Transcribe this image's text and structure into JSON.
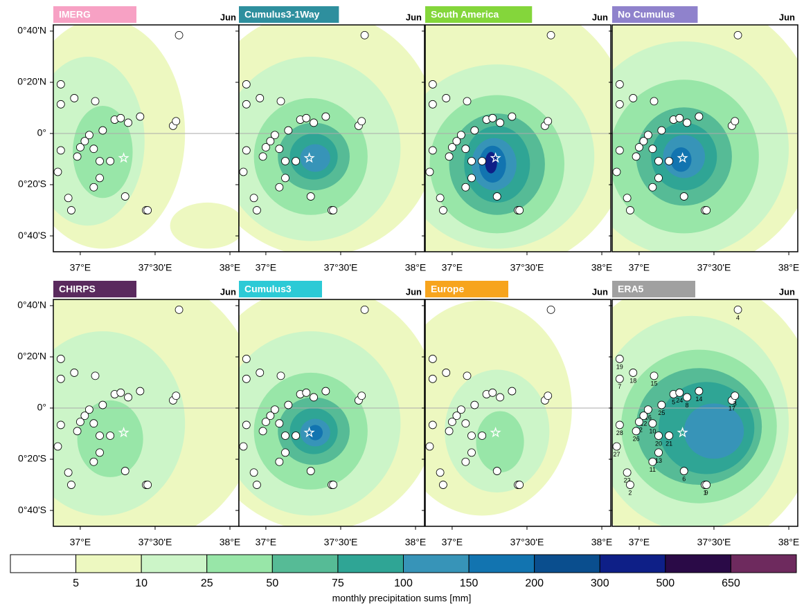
{
  "panels": [
    {
      "title": "IMERG",
      "color": "#f7a1c4",
      "month": "Jun"
    },
    {
      "title": "Cumulus3-1Way",
      "color": "#2e8f9e",
      "month": "Jun"
    },
    {
      "title": "South America",
      "color": "#84d63b",
      "month": "Jun"
    },
    {
      "title": "No Cumulus",
      "color": "#8f82cc",
      "month": "Jun"
    },
    {
      "title": "CHIRPS",
      "color": "#5a2a5e",
      "month": "Jun"
    },
    {
      "title": "Cumulus3",
      "color": "#2ccad6",
      "month": "Jun"
    },
    {
      "title": "Europe",
      "color": "#f7a41d",
      "month": "Jun"
    },
    {
      "title": "ERA5",
      "color": "#a0a0a0",
      "month": "Jun"
    }
  ],
  "xlim": [
    36.82,
    38.06
  ],
  "ylim": [
    -0.77,
    0.707
  ],
  "xticks": [
    {
      "value": 37,
      "label": "37°E"
    },
    {
      "value": 37.5,
      "label": "37°30'E"
    },
    {
      "value": 38,
      "label": "38°E"
    }
  ],
  "yticks": [
    {
      "value": 0.6667,
      "label": "0°40'N"
    },
    {
      "value": 0.3333,
      "label": "0°20'N"
    },
    {
      "value": 0,
      "label": "0°"
    },
    {
      "value": -0.3333,
      "label": "0°20'S"
    },
    {
      "value": -0.6667,
      "label": "0°40'S"
    }
  ],
  "star": {
    "lon": 37.29,
    "lat": -0.16
  },
  "stations": [
    {
      "id": "4",
      "lon": 37.66,
      "lat": 0.64
    },
    {
      "id": "19",
      "lon": 36.87,
      "lat": 0.32
    },
    {
      "id": "7",
      "lon": 36.87,
      "lat": 0.19
    },
    {
      "id": "18",
      "lon": 36.96,
      "lat": 0.23
    },
    {
      "id": "15",
      "lon": 37.1,
      "lat": 0.21
    },
    {
      "id": "5",
      "lon": 37.23,
      "lat": 0.09
    },
    {
      "id": "24",
      "lon": 37.27,
      "lat": 0.1
    },
    {
      "id": "8",
      "lon": 37.32,
      "lat": 0.07
    },
    {
      "id": "14",
      "lon": 37.4,
      "lat": 0.11
    },
    {
      "id": "17",
      "lon": 37.62,
      "lat": 0.05
    },
    {
      "id": "3",
      "lon": 37.64,
      "lat": 0.08
    },
    {
      "id": "25",
      "lon": 37.15,
      "lat": 0.02
    },
    {
      "id": "16",
      "lon": 37.06,
      "lat": -0.01
    },
    {
      "id": "12",
      "lon": 37.03,
      "lat": -0.05
    },
    {
      "id": "22",
      "lon": 37.0,
      "lat": -0.09
    },
    {
      "id": "28",
      "lon": 36.87,
      "lat": -0.11
    },
    {
      "id": "26",
      "lon": 36.98,
      "lat": -0.15
    },
    {
      "id": "10",
      "lon": 37.09,
      "lat": -0.1
    },
    {
      "id": "20",
      "lon": 37.13,
      "lat": -0.18
    },
    {
      "id": "21",
      "lon": 37.2,
      "lat": -0.18
    },
    {
      "id": "13",
      "lon": 37.13,
      "lat": -0.29
    },
    {
      "id": "11",
      "lon": 37.09,
      "lat": -0.35
    },
    {
      "id": "27",
      "lon": 36.85,
      "lat": -0.25
    },
    {
      "id": "23",
      "lon": 36.92,
      "lat": -0.42
    },
    {
      "id": "2",
      "lon": 36.94,
      "lat": -0.5
    },
    {
      "id": "6",
      "lon": 37.3,
      "lat": -0.41
    },
    {
      "id": "1",
      "lon": 37.44,
      "lat": -0.5
    },
    {
      "id": "9",
      "lon": 37.45,
      "lat": -0.5
    }
  ],
  "colorbar": {
    "title": "monthly precipitation sums [mm]",
    "levels": [
      5,
      10,
      25,
      50,
      75,
      100,
      150,
      200,
      300,
      500,
      650
    ],
    "colors": [
      "#ffffff",
      "#edf8c0",
      "#ccf5c8",
      "#98e6a8",
      "#56bb96",
      "#2fa595",
      "#3794b8",
      "#1274b0",
      "#0a4e8e",
      "#0e1f87",
      "#2a0a47",
      "#6e2a5e"
    ]
  }
}
